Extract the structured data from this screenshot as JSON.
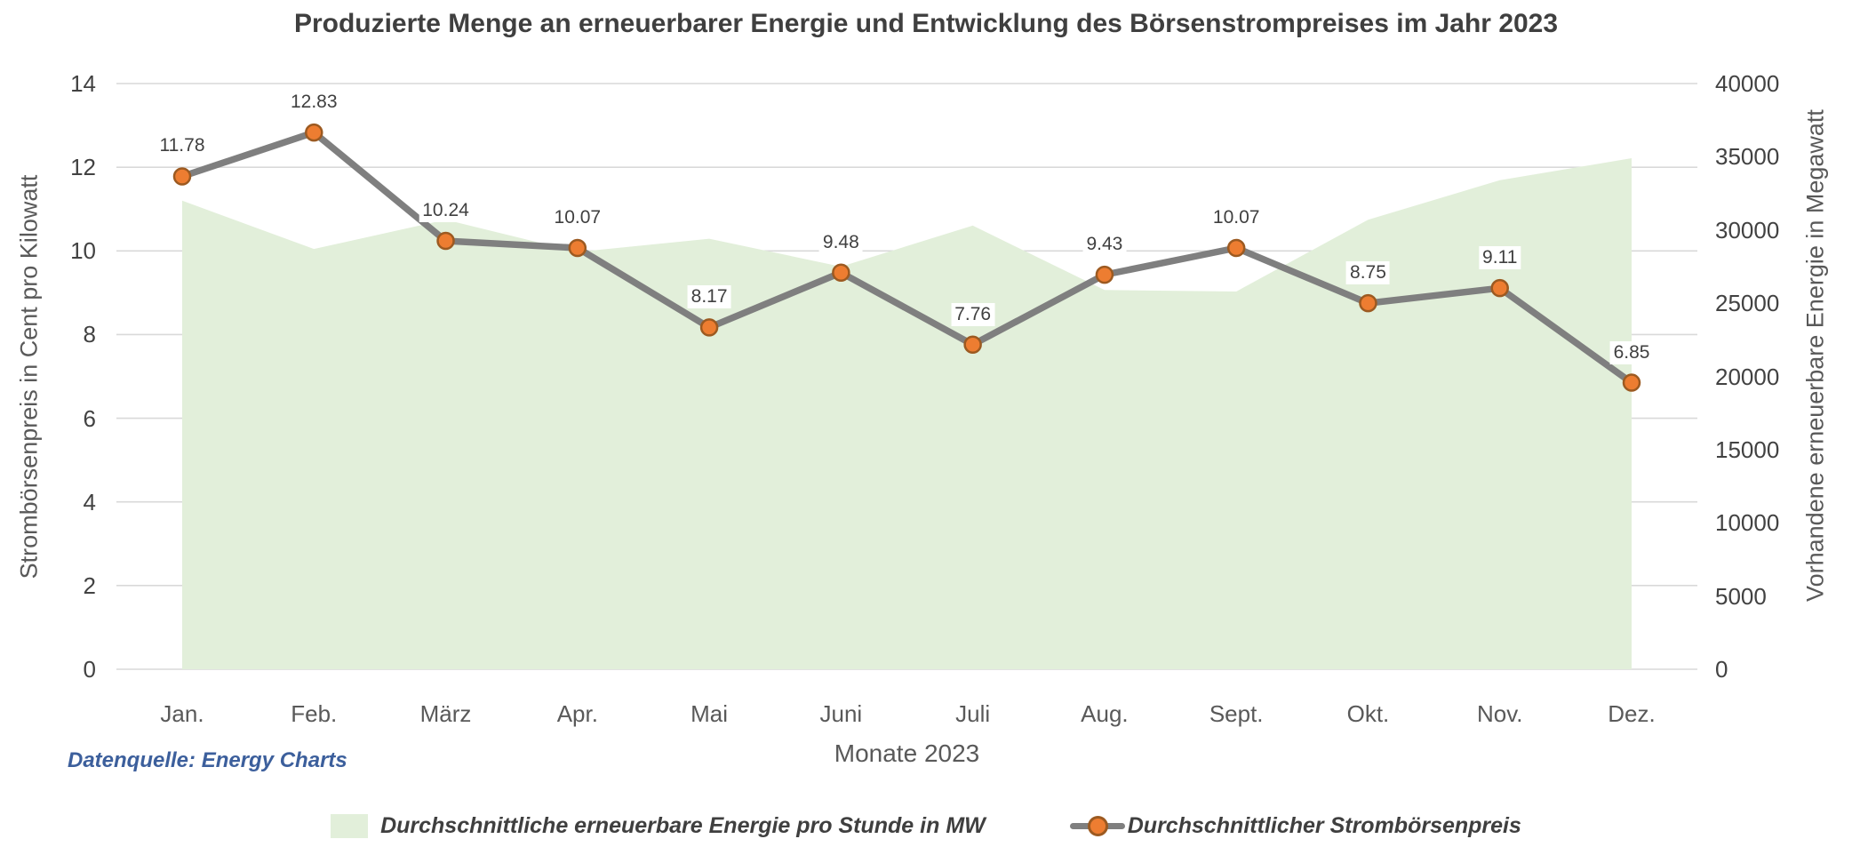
{
  "title": "Produzierte Menge an erneuerbarer Energie und Entwicklung des Börsenstrompreises im Jahr 2023",
  "source_note": "Datenquelle: Energy Charts",
  "x_axis": {
    "title": "Monate 2023",
    "categories": [
      "Jan.",
      "Feb.",
      "März",
      "Apr.",
      "Mai",
      "Juni",
      "Juli",
      "Aug.",
      "Sept.",
      "Okt.",
      "Nov.",
      "Dez."
    ]
  },
  "left_axis": {
    "title": "Strombörsenpreis in Cent pro Kilowatt",
    "ticks": [
      0,
      2,
      4,
      6,
      8,
      10,
      12,
      14
    ],
    "min": 0,
    "max": 14
  },
  "right_axis": {
    "title": "Vorhandene erneuerbare Energie in Megawatt",
    "ticks": [
      0,
      5000,
      10000,
      15000,
      20000,
      25000,
      30000,
      35000,
      40000
    ],
    "min": 0,
    "max": 40000
  },
  "legend": {
    "position": "bottom",
    "entries": [
      {
        "label": "Durchschnittliche erneuerbare Energie pro Stunde in MW",
        "marker": "area-swatch"
      },
      {
        "label": "Durchschnittlicher Strombörsenpreis",
        "marker": "line-dot"
      }
    ]
  },
  "chart_data": {
    "type": "combo",
    "subtypes": [
      "area",
      "line"
    ],
    "categories": [
      "Jan.",
      "Feb.",
      "März",
      "Apr.",
      "Mai",
      "Juni",
      "Juli",
      "Aug.",
      "Sept.",
      "Okt.",
      "Nov.",
      "Dez."
    ],
    "series": [
      {
        "name": "Durchschnittliche erneuerbare Energie pro Stunde in MW",
        "type": "area",
        "axis": "right",
        "values": [
          32000,
          28700,
          30700,
          28500,
          29400,
          27500,
          30300,
          25900,
          25800,
          30700,
          33400,
          34900
        ]
      },
      {
        "name": "Durchschnittlicher Strombörsenpreis",
        "type": "line",
        "axis": "left",
        "values": [
          11.78,
          12.83,
          10.24,
          10.07,
          8.17,
          9.48,
          7.76,
          9.43,
          10.07,
          8.75,
          9.11,
          6.85
        ],
        "data_labels": [
          "11.78",
          "12.83",
          "10.24",
          "10.07",
          "8.17",
          "9.48",
          "7.76",
          "9.43",
          "10.07",
          "8.75",
          "9.11",
          "6.85"
        ]
      }
    ],
    "left_ylim": [
      0,
      14
    ],
    "right_ylim": [
      0,
      40000
    ],
    "grid": true,
    "legend_position": "bottom"
  },
  "colors": {
    "area_fill": "#e2efda",
    "line": "#7f7f7f",
    "marker_fill": "#ed7d31",
    "marker_stroke": "#9c5a21",
    "gridline": "#d9d9d9",
    "tick_text": "#424242",
    "axis_title_text": "#595959",
    "title_text": "#3f3f3f",
    "data_label_text": "#404040",
    "source_text": "#3c5f9c",
    "legend_text": "#3f3f3f"
  }
}
